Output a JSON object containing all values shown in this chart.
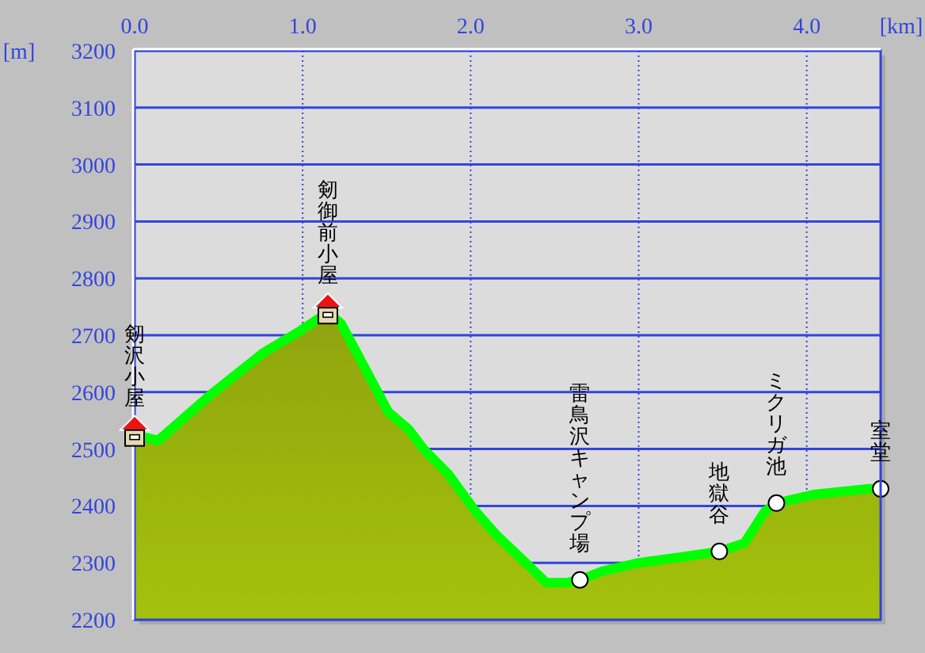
{
  "chart_data": {
    "type": "area",
    "xlabel": "[km]",
    "ylabel": "[m]",
    "x": [
      0,
      0.14,
      0.45,
      0.77,
      0.97,
      1.15,
      1.23,
      1.51,
      1.63,
      1.72,
      1.87,
      2.03,
      2.15,
      2.31,
      2.45,
      2.57,
      2.65,
      2.78,
      3.0,
      3.25,
      3.48,
      3.63,
      3.75,
      3.82,
      4.04,
      4.36,
      4.44
    ],
    "series": [
      {
        "color": "#00ff00",
        "values": [
          2525,
          2515,
          2595,
          2670,
          2705,
          2740,
          2720,
          2565,
          2535,
          2500,
          2455,
          2390,
          2350,
          2305,
          2265,
          2265,
          2270,
          2285,
          2300,
          2310,
          2320,
          2335,
          2390,
          2405,
          2420,
          2430,
          2430
        ]
      },
      {
        "type": "scatter",
        "color": "#ffffff",
        "marker": "circle",
        "x": [
          2.65,
          3.48,
          3.82,
          4.44
        ],
        "values": [
          2270,
          2320,
          2405,
          2430
        ]
      }
    ],
    "xlim": [
      0,
      4.44
    ],
    "ylim": [
      2200,
      3200
    ],
    "xticks": [
      {
        "value": 0,
        "label": "0.0"
      },
      {
        "value": 1,
        "label": "1.0"
      },
      {
        "value": 2,
        "label": "2.0"
      },
      {
        "value": 3,
        "label": "3.0"
      },
      {
        "value": 4,
        "label": "4.0"
      }
    ],
    "yticks": [
      2200,
      2300,
      2400,
      2500,
      2600,
      2700,
      2800,
      2900,
      3000,
      3100,
      3200
    ],
    "grid": true,
    "annotations": [
      {
        "text": "剱沢小屋",
        "x": 0,
        "y": 2525
      },
      {
        "text": "剱御前小屋",
        "x": 1.15,
        "y": 2740
      },
      {
        "text": "雷鳥沢キャンプ場",
        "x": 2.65,
        "y": 2270
      },
      {
        "text": "地獄谷",
        "x": 3.48,
        "y": 2320
      },
      {
        "text": "ミクリガ池",
        "x": 3.82,
        "y": 2405
      },
      {
        "text": "室堂",
        "x": 4.44,
        "y": 2430
      }
    ]
  }
}
